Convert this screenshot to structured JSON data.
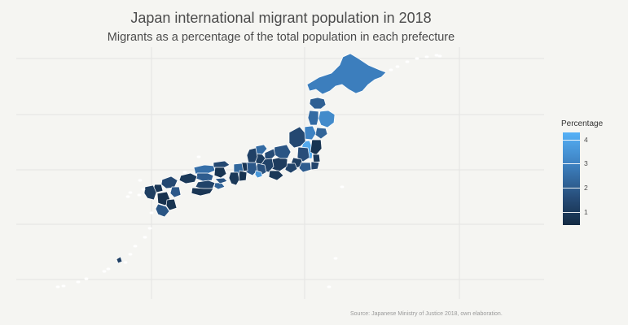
{
  "title": "Japan international migrant population in 2018",
  "subtitle": "Migrants as a percentage of the total population in each prefecture",
  "source": "Source: Japanese Ministry of Justice 2018, own elaboration.",
  "legend": {
    "title": "Percentage",
    "ticks": [
      {
        "label": "4",
        "value": 4
      },
      {
        "label": "3",
        "value": 3
      },
      {
        "label": "2",
        "value": 2
      },
      {
        "label": "1",
        "value": 1
      }
    ],
    "low_color": "#132b43",
    "high_color": "#56b1f7",
    "range": [
      0.45,
      4.3
    ]
  },
  "map": {
    "background": "#f5f5f2",
    "gridline_color": "#e4e4e2",
    "regions": [
      {
        "name": "hokkaido",
        "value": 3.1
      },
      {
        "name": "aomori",
        "value": 2.3
      },
      {
        "name": "iwate",
        "value": 3.4
      },
      {
        "name": "akita",
        "value": 2.6
      },
      {
        "name": "miyagi",
        "value": 2.4
      },
      {
        "name": "yamagata",
        "value": 3.2
      },
      {
        "name": "fukushima",
        "value": 4.1
      },
      {
        "name": "niigata",
        "value": 1.6
      },
      {
        "name": "ibaraki",
        "value": 0.8
      },
      {
        "name": "tochigi",
        "value": 1.0
      },
      {
        "name": "gunma",
        "value": 1.8
      },
      {
        "name": "saitama",
        "value": 1.2
      },
      {
        "name": "chiba",
        "value": 1.5
      },
      {
        "name": "tokyo",
        "value": 2.2
      },
      {
        "name": "kanagawa",
        "value": 1.4
      },
      {
        "name": "yamanashi",
        "value": 1.1
      },
      {
        "name": "nagano",
        "value": 2.0
      },
      {
        "name": "toyama",
        "value": 1.7
      },
      {
        "name": "ishikawa",
        "value": 2.6
      },
      {
        "name": "fukui",
        "value": 1.2
      },
      {
        "name": "gifu",
        "value": 1.4
      },
      {
        "name": "shizuoka",
        "value": 1.0
      },
      {
        "name": "aichi",
        "value": 1.9
      },
      {
        "name": "mie",
        "value": 2.1
      },
      {
        "name": "shiga",
        "value": 0.9
      },
      {
        "name": "kyoto",
        "value": 1.3
      },
      {
        "name": "osaka",
        "value": 3.7
      },
      {
        "name": "hyogo",
        "value": 2.5
      },
      {
        "name": "nara",
        "value": 0.8
      },
      {
        "name": "wakayama",
        "value": 1.0
      },
      {
        "name": "tottori",
        "value": 1.6
      },
      {
        "name": "shimane",
        "value": 2.7
      },
      {
        "name": "okayama",
        "value": 0.8
      },
      {
        "name": "hiroshima",
        "value": 2.2
      },
      {
        "name": "yamaguchi",
        "value": 1.0
      },
      {
        "name": "tokushima",
        "value": 2.4
      },
      {
        "name": "kagawa",
        "value": 2.0
      },
      {
        "name": "ehime",
        "value": 1.4
      },
      {
        "name": "kochi",
        "value": 0.9
      },
      {
        "name": "fukuoka",
        "value": 1.6
      },
      {
        "name": "saga",
        "value": 0.9
      },
      {
        "name": "nagasaki",
        "value": 1.2
      },
      {
        "name": "kumamoto",
        "value": 0.7
      },
      {
        "name": "oita",
        "value": 2.1
      },
      {
        "name": "miyazaki",
        "value": 0.8
      },
      {
        "name": "kagoshima",
        "value": 2.0
      },
      {
        "name": "okinawa",
        "value": 1.3
      }
    ]
  }
}
